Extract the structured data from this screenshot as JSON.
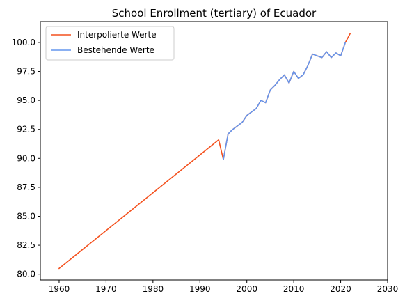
{
  "chart_data": {
    "type": "line",
    "title": "School Enrollment (tertiary) of Ecuador",
    "xlabel": "",
    "ylabel": "",
    "xlim": [
      1956,
      2030
    ],
    "ylim": [
      79.5,
      101.8
    ],
    "xticks": [
      1960,
      1970,
      1980,
      1990,
      2000,
      2010,
      2020,
      2030
    ],
    "yticks": [
      80.0,
      82.5,
      85.0,
      87.5,
      90.0,
      92.5,
      95.0,
      97.5,
      100.0
    ],
    "ytick_labels": [
      "80.0",
      "82.5",
      "85.0",
      "87.5",
      "90.0",
      "92.5",
      "95.0",
      "97.5",
      "100.0"
    ],
    "grid": false,
    "legend_position": "top-left",
    "series": [
      {
        "name": "Interpolierte Werte",
        "color": "#f4511e",
        "x": [
          1960,
          1994,
          1995,
          1996,
          1997,
          1998,
          1999,
          2000,
          2001,
          2002,
          2003,
          2004,
          2005,
          2006,
          2007,
          2008,
          2009,
          2010,
          2011,
          2012,
          2013,
          2014,
          2015,
          2016,
          2017,
          2018,
          2019,
          2020,
          2021,
          2022
        ],
        "values": [
          80.5,
          91.6,
          89.9,
          92.1,
          92.5,
          92.8,
          93.1,
          93.7,
          94.0,
          94.3,
          95.0,
          94.8,
          95.9,
          96.3,
          96.8,
          97.2,
          96.5,
          97.5,
          96.9,
          97.2,
          98.0,
          99.0,
          98.85,
          98.7,
          99.2,
          98.7,
          99.1,
          98.85,
          100.0,
          100.75
        ]
      },
      {
        "name": "Bestehende Werte",
        "color": "#6495ed",
        "x": [
          1995,
          1996,
          1997,
          1998,
          1999,
          2000,
          2001,
          2002,
          2003,
          2004,
          2005,
          2006,
          2007,
          2008,
          2009,
          2010,
          2011,
          2012,
          2013,
          2014,
          2015,
          2016,
          2017,
          2018,
          2019,
          2020,
          2021
        ],
        "values": [
          89.9,
          92.1,
          92.5,
          92.8,
          93.1,
          93.7,
          94.0,
          94.3,
          95.0,
          94.8,
          95.9,
          96.3,
          96.8,
          97.2,
          96.5,
          97.5,
          96.9,
          97.2,
          98.0,
          99.0,
          98.85,
          98.7,
          99.2,
          98.7,
          99.1,
          98.85,
          100.0
        ]
      }
    ]
  }
}
